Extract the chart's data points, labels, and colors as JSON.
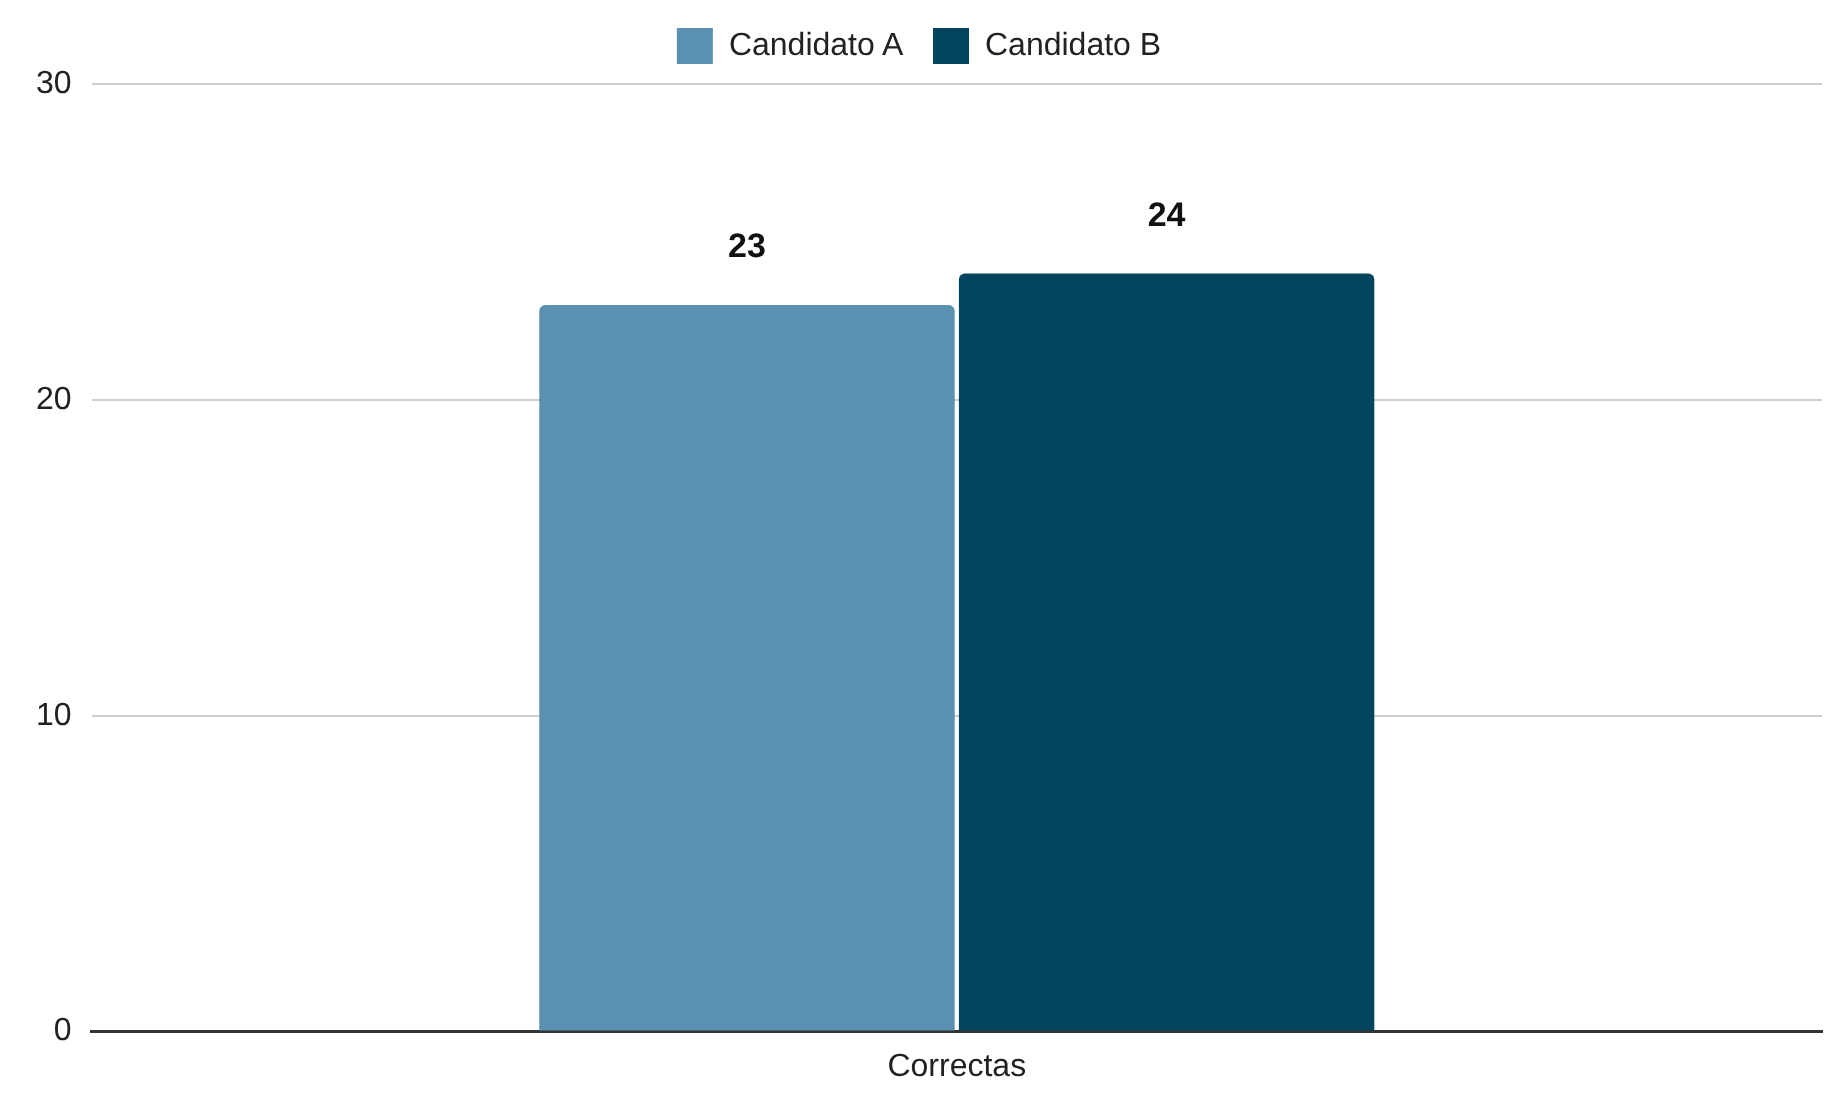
{
  "chart_data": {
    "type": "bar",
    "categories": [
      "Correctas"
    ],
    "series": [
      {
        "name": "Candidato A",
        "color": "#5a91b0",
        "values": [
          23
        ]
      },
      {
        "name": "Candidato B",
        "color": "#03455f",
        "values": [
          24
        ]
      }
    ],
    "ylim": [
      0,
      30
    ],
    "yticks": [
      0,
      10,
      20,
      30
    ],
    "grid": "y",
    "legend": "top",
    "data_labels": true
  }
}
